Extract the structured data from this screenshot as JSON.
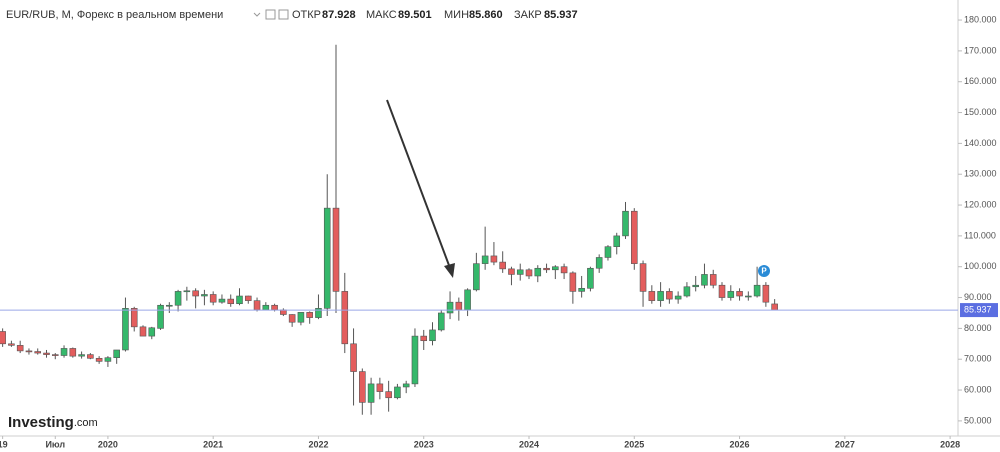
{
  "chart_data": {
    "type": "candlestick",
    "title": "EUR/RUB, M, Форекс в реальном времени",
    "header": {
      "open_label": "ОТКР",
      "open": "87.928",
      "high_label": "МАКС",
      "high": "89.501",
      "low_label": "МИН",
      "low": "85.860",
      "close_label": "ЗАКР",
      "close": "85.937"
    },
    "brand": {
      "name": "Investing",
      "suffix": ".com"
    },
    "up_color": "#35b86b",
    "down_color": "#e35d5d",
    "wick_color": "#555555",
    "price_line_color": "#9aa6e8",
    "price_label_color": "#5b6ee1",
    "x": [
      0,
      1,
      2,
      3,
      4,
      5,
      6,
      7,
      8,
      9,
      10,
      11,
      12,
      13,
      14,
      15,
      16,
      17,
      18,
      19,
      20,
      21,
      22,
      23,
      24,
      25,
      26,
      27,
      28,
      29,
      30,
      31,
      32,
      33,
      34,
      35,
      36,
      37,
      38,
      39,
      40,
      41,
      42,
      43,
      44,
      45,
      46,
      47,
      48,
      49,
      50,
      51,
      52,
      53,
      54,
      55,
      56,
      57,
      58,
      59,
      60,
      61,
      62,
      63,
      64,
      65,
      66,
      67,
      68,
      69,
      70,
      71,
      72,
      73,
      74,
      75,
      76,
      77,
      78,
      79,
      80,
      81,
      82,
      83,
      84,
      85,
      86,
      87,
      88
    ],
    "open": [
      79,
      75,
      74.5,
      72.7,
      72.5,
      72,
      71.5,
      71.2,
      73.5,
      71,
      71.5,
      70.3,
      69.3,
      70.5,
      73,
      86.5,
      80.5,
      77.5,
      80,
      87.5,
      87.5,
      92,
      92.2,
      90.5,
      91,
      88.5,
      89.5,
      88,
      90.5,
      89,
      86,
      87.5,
      86,
      84.5,
      82,
      85.2,
      83.5,
      86.5,
      119,
      92,
      75,
      66,
      56,
      62,
      59.5,
      57.5,
      61,
      62,
      77.5,
      76,
      79.5,
      85,
      88.5,
      86,
      92.5,
      101,
      103.5,
      101.5,
      99.3,
      97.5,
      99,
      97,
      99.5,
      99,
      100,
      98,
      92,
      93,
      99.5,
      103,
      106.5,
      110,
      118,
      101,
      92,
      89,
      92,
      89.5,
      90.5,
      93.5,
      94,
      97.5,
      94,
      90,
      92,
      90.5,
      90.5,
      94,
      87.928
    ],
    "high": [
      80,
      76,
      76,
      73.5,
      73.5,
      73,
      72,
      74.5,
      73.8,
      72.5,
      72,
      71,
      71,
      73,
      90,
      87,
      81,
      80.5,
      88,
      88.5,
      92.5,
      93.5,
      93,
      92.5,
      92,
      91,
      91,
      93,
      90.6,
      90,
      88.5,
      88,
      86.5,
      84.6,
      85,
      85.5,
      91,
      130,
      172,
      98,
      80,
      67,
      64,
      64,
      63,
      62,
      63,
      80,
      79.5,
      82,
      86,
      92,
      90,
      93,
      104.5,
      113,
      108,
      105,
      100,
      101,
      99.5,
      100.5,
      101,
      100.5,
      101,
      98.5,
      97,
      100,
      104,
      107,
      111,
      121,
      119,
      102,
      94,
      95,
      93,
      92,
      95,
      97,
      101,
      99,
      95,
      94,
      93,
      92,
      100,
      95,
      89.501
    ],
    "low": [
      74,
      74,
      72,
      71.5,
      71.5,
      70.5,
      70,
      70.5,
      70.5,
      70.2,
      70,
      68.5,
      67.5,
      68.5,
      72.5,
      79,
      77.5,
      76.5,
      79.5,
      85,
      85.5,
      89,
      86.5,
      87.5,
      87.5,
      88,
      87,
      87.5,
      88,
      85.5,
      86,
      85.5,
      84,
      80.5,
      81,
      81.5,
      83,
      84,
      85,
      72,
      55,
      52,
      52,
      57,
      53,
      57,
      59,
      61,
      73,
      74.5,
      79,
      83,
      82.5,
      84,
      92,
      99,
      100.5,
      98,
      94,
      95.5,
      96,
      95,
      98,
      96,
      96,
      88,
      90,
      92,
      98,
      102,
      104,
      109,
      99,
      87,
      88,
      87,
      88,
      88,
      90,
      92,
      93,
      93,
      89,
      89,
      89,
      89,
      90,
      87,
      85.86
    ],
    "close": [
      75,
      74.5,
      72.7,
      72.5,
      72,
      71.5,
      71.2,
      73.5,
      71,
      71.5,
      70.3,
      69.3,
      70.5,
      73,
      86.5,
      80.5,
      77.5,
      80.2,
      87.5,
      87.5,
      92,
      92.2,
      90.5,
      91,
      88.5,
      89.5,
      88,
      90.5,
      89,
      86,
      87.5,
      86,
      84.5,
      82,
      85.2,
      83.5,
      86.5,
      119,
      92,
      75,
      66,
      56,
      62,
      59.5,
      57.5,
      61,
      62,
      77.5,
      76,
      79.5,
      85,
      88.5,
      86,
      92.5,
      101,
      103.5,
      101.5,
      99.3,
      97.5,
      99,
      97,
      99.5,
      99,
      100,
      98,
      92,
      93,
      99.5,
      103,
      106.5,
      110,
      118,
      101,
      92,
      89,
      92,
      89.5,
      90.5,
      93.5,
      94,
      97.5,
      94,
      90,
      92,
      90.5,
      90.5,
      94,
      88.5,
      85.937
    ],
    "xlim": [
      -0.3,
      108.9
    ],
    "xticks": [
      {
        "value": 0,
        "label": "19"
      },
      {
        "value": 6,
        "label": "Июл"
      },
      {
        "value": 12,
        "label": "2020"
      },
      {
        "value": 24,
        "label": "2021"
      },
      {
        "value": 36,
        "label": "2022"
      },
      {
        "value": 48,
        "label": "2023"
      },
      {
        "value": 60,
        "label": "2024"
      },
      {
        "value": 72,
        "label": "2025"
      },
      {
        "value": 84,
        "label": "2026"
      },
      {
        "value": 96,
        "label": "2027"
      },
      {
        "value": 108,
        "label": "2028"
      }
    ],
    "ylim": [
      45.1,
      186.5
    ],
    "yticks": [
      {
        "value": 50,
        "label": "50.000"
      },
      {
        "value": 60,
        "label": "60.000"
      },
      {
        "value": 70,
        "label": "70.000"
      },
      {
        "value": 80,
        "label": "80.000"
      },
      {
        "value": 90,
        "label": "90.000"
      },
      {
        "value": 100,
        "label": "100.000"
      },
      {
        "value": 110,
        "label": "110.000"
      },
      {
        "value": 120,
        "label": "120.000"
      },
      {
        "value": 130,
        "label": "130.000"
      },
      {
        "value": 140,
        "label": "140.000"
      },
      {
        "value": 150,
        "label": "150.000"
      },
      {
        "value": 160,
        "label": "160.000"
      },
      {
        "value": 170,
        "label": "170.000"
      },
      {
        "value": 180,
        "label": "180.000"
      }
    ]
  }
}
